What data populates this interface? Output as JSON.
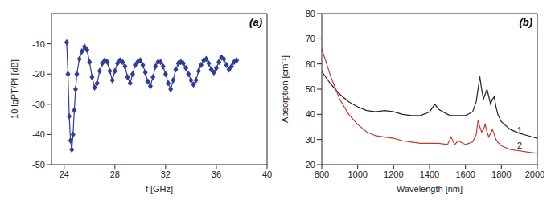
{
  "chart_data": [
    {
      "type": "line",
      "title": "(a)",
      "x_label": "f [GHz]",
      "y_label": "10 lgPT/PI [dB]",
      "xlim": [
        23,
        40
      ],
      "xticks": [
        24,
        28,
        32,
        36,
        40
      ],
      "ylim": [
        -50,
        0
      ],
      "yticks": [
        -50,
        -40,
        -30,
        -20,
        -10
      ],
      "grid": false,
      "x": [
        24.2,
        24.3,
        24.4,
        24.5,
        24.6,
        24.7,
        24.8,
        24.9,
        25.0,
        25.2,
        25.4,
        25.6,
        25.8,
        26.0,
        26.2,
        26.4,
        26.6,
        26.8,
        27.0,
        27.2,
        27.4,
        27.6,
        27.8,
        28.0,
        28.2,
        28.4,
        28.6,
        28.8,
        29.0,
        29.2,
        29.4,
        29.6,
        29.8,
        30.0,
        30.2,
        30.4,
        30.6,
        30.8,
        31.0,
        31.2,
        31.4,
        31.6,
        31.8,
        32.0,
        32.2,
        32.4,
        32.6,
        32.8,
        33.0,
        33.2,
        33.4,
        33.6,
        33.8,
        34.0,
        34.2,
        34.4,
        34.6,
        34.8,
        35.0,
        35.2,
        35.4,
        35.6,
        35.8,
        36.0,
        36.2,
        36.4,
        36.6,
        36.8,
        37.0,
        37.2,
        37.4,
        37.6
      ],
      "series": [
        {
          "color": "#2e3d98",
          "marker": "diamond",
          "values": [
            -9.5,
            -20,
            -34,
            -42,
            -45,
            -40,
            -32,
            -25,
            -20,
            -15,
            -12.5,
            -11,
            -12,
            -16,
            -21,
            -24.5,
            -23,
            -19,
            -16.5,
            -15.5,
            -16,
            -19,
            -22,
            -19,
            -16.5,
            -15.5,
            -16,
            -17.5,
            -21,
            -23,
            -20,
            -17,
            -16,
            -15.5,
            -17,
            -19.5,
            -22.5,
            -24,
            -21,
            -17.5,
            -16,
            -16,
            -17.5,
            -20,
            -23,
            -25,
            -22,
            -18.5,
            -16.5,
            -16,
            -16.5,
            -18,
            -20,
            -22,
            -23.5,
            -22,
            -19,
            -17,
            -15.5,
            -15,
            -16.5,
            -18.5,
            -19.5,
            -18,
            -16,
            -14.5,
            -15,
            -17,
            -18.5,
            -17.5,
            -16,
            -15.5
          ]
        }
      ]
    },
    {
      "type": "line",
      "title": "(b)",
      "x_label": "Wavelength [nm]",
      "y_label": "Absorption [cm⁻¹]",
      "xlim": [
        800,
        2000
      ],
      "xticks": [
        800,
        1000,
        1200,
        1400,
        1600,
        1800,
        2000
      ],
      "ylim": [
        20,
        80
      ],
      "yticks": [
        20,
        30,
        40,
        50,
        60,
        70,
        80
      ],
      "grid": false,
      "x": [
        800,
        850,
        900,
        950,
        1000,
        1050,
        1100,
        1150,
        1200,
        1250,
        1300,
        1350,
        1400,
        1430,
        1450,
        1500,
        1520,
        1540,
        1560,
        1600,
        1640,
        1660,
        1670,
        1680,
        1690,
        1700,
        1710,
        1720,
        1730,
        1740,
        1750,
        1760,
        1770,
        1780,
        1800,
        1850,
        1900,
        1950,
        2000
      ],
      "series": [
        {
          "name": "1",
          "color": "#222222",
          "marker": "none",
          "values": [
            57,
            52,
            48,
            45,
            43,
            41.5,
            41,
            41.5,
            41,
            40,
            39.5,
            39.5,
            41,
            44,
            42,
            40,
            39.5,
            39.5,
            39.5,
            39.5,
            41,
            45,
            50,
            55,
            50,
            46,
            48,
            50,
            47,
            44,
            46,
            47,
            43,
            40,
            37,
            34,
            32.5,
            31.5,
            30.5
          ]
        },
        {
          "name": "2",
          "color": "#c0392b",
          "marker": "none",
          "values": [
            66,
            55,
            46,
            40,
            36,
            33,
            31.5,
            31,
            30.5,
            29.5,
            29,
            28.5,
            28.5,
            28.5,
            28.5,
            28,
            31,
            28,
            29.5,
            28,
            29,
            32,
            37.5,
            35,
            33,
            34,
            36,
            33,
            31,
            32.5,
            34,
            32,
            30,
            29,
            27.5,
            26,
            25.5,
            25,
            24.5
          ]
        }
      ]
    }
  ]
}
